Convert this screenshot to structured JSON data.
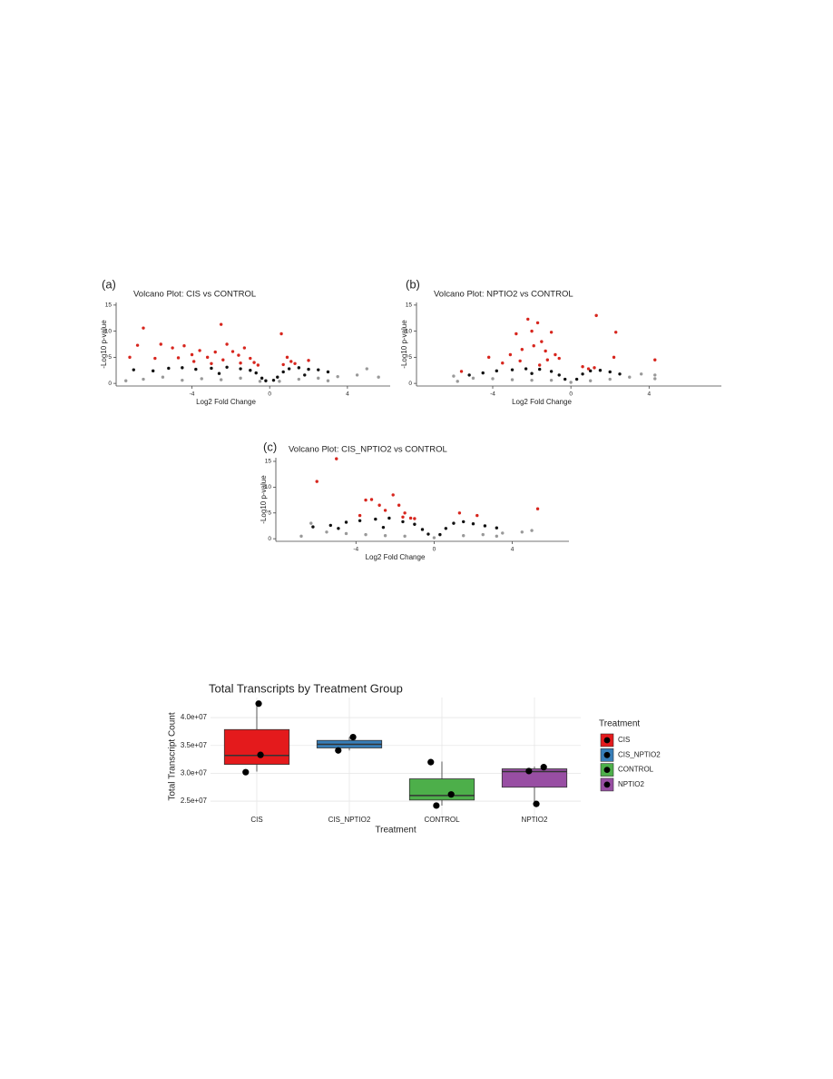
{
  "chart_data": [
    {
      "type": "scatter",
      "panel_label": "(a)",
      "title": "Volcano Plot: CIS vs CONTROL",
      "x_label": "Log2 Fold Change",
      "y_label": "-Log10 p-value",
      "xlim": [
        -7.9,
        6.2
      ],
      "ylim": [
        -0.5,
        15.5
      ],
      "xticks": [
        -4,
        0,
        4
      ],
      "yticks": [
        0,
        5,
        10,
        15
      ],
      "series": [
        {
          "color": "#999999",
          "x": [
            -6.5,
            -5.5,
            -4.5,
            -3.5,
            -2.5,
            -1.5,
            -0.5,
            0.5,
            1.5,
            2.5,
            3.5,
            4.5,
            5.0,
            5.6,
            3.0,
            -7.4
          ],
          "y": [
            0.8,
            1.2,
            0.6,
            0.9,
            0.7,
            1.0,
            0.4,
            0.4,
            0.8,
            1.0,
            1.3,
            1.6,
            2.8,
            1.2,
            0.5,
            0.5
          ]
        },
        {
          "color": "#111111",
          "x": [
            -7.0,
            -6.0,
            -5.2,
            -4.5,
            -3.8,
            -3.0,
            -2.2,
            -1.5,
            -1.0,
            -0.7,
            -0.4,
            -0.2,
            0.2,
            0.4,
            0.7,
            1.0,
            1.5,
            2.0,
            2.5,
            3.0,
            1.8,
            -2.6
          ],
          "y": [
            2.6,
            2.4,
            2.9,
            3.0,
            2.7,
            2.9,
            3.1,
            2.8,
            2.5,
            2.0,
            1.0,
            0.5,
            0.6,
            1.2,
            2.2,
            2.8,
            3.0,
            2.7,
            2.6,
            2.2,
            1.6,
            1.9
          ]
        },
        {
          "color": "#d7261e",
          "x": [
            -6.5,
            -5.6,
            -6.8,
            -7.2,
            -5.9,
            -5.0,
            -4.4,
            -4.0,
            -3.6,
            -3.2,
            -2.8,
            -2.5,
            -2.2,
            -1.9,
            -1.6,
            -1.3,
            -1.0,
            -0.8,
            -3.9,
            -2.4,
            -1.5,
            -4.7,
            -3.0,
            0.9,
            1.1,
            0.6,
            1.3,
            0.7,
            2.0,
            -0.6
          ],
          "y": [
            10.6,
            7.5,
            7.3,
            5.0,
            4.8,
            6.8,
            7.2,
            5.5,
            6.3,
            5.0,
            6.0,
            11.3,
            7.5,
            6.1,
            5.4,
            6.8,
            4.8,
            4.0,
            4.2,
            4.5,
            3.9,
            4.9,
            3.8,
            5.0,
            4.2,
            9.5,
            3.8,
            3.6,
            4.4,
            3.5
          ]
        }
      ]
    },
    {
      "type": "scatter",
      "panel_label": "(b)",
      "title": "Volcano Plot: NPTIO2 vs CONTROL",
      "x_label": "Log2 Fold Change",
      "y_label": "-Log10 p-value",
      "xlim": [
        -7.9,
        7.7
      ],
      "ylim": [
        -0.5,
        15.5
      ],
      "xticks": [
        -4,
        0,
        4
      ],
      "yticks": [
        0,
        5,
        10,
        15
      ],
      "series": [
        {
          "color": "#999999",
          "x": [
            -6.0,
            -5.0,
            -4.0,
            -3.0,
            -2.0,
            -1.0,
            0.0,
            1.0,
            2.0,
            3.0,
            3.6,
            4.3,
            4.3,
            -5.8
          ],
          "y": [
            1.4,
            1.0,
            0.9,
            0.7,
            0.6,
            0.6,
            0.2,
            0.5,
            0.8,
            1.2,
            1.8,
            1.6,
            0.9,
            0.4
          ]
        },
        {
          "color": "#111111",
          "x": [
            -5.2,
            -4.5,
            -3.8,
            -3.0,
            -2.3,
            -1.6,
            -1.0,
            -0.6,
            -0.3,
            0.3,
            0.6,
            1.0,
            1.5,
            2.0,
            2.5,
            -2.0
          ],
          "y": [
            1.6,
            2.0,
            2.4,
            2.6,
            2.8,
            2.7,
            2.3,
            1.6,
            0.8,
            0.8,
            1.8,
            2.4,
            2.5,
            2.2,
            1.8,
            1.9
          ]
        },
        {
          "color": "#d7261e",
          "x": [
            -5.6,
            -4.2,
            -3.1,
            -2.8,
            -2.5,
            -2.2,
            -2.0,
            -1.9,
            -1.7,
            -1.5,
            -1.3,
            -1.2,
            -1.0,
            -0.8,
            -0.6,
            -2.6,
            -3.5,
            0.6,
            0.9,
            1.2,
            1.3,
            2.3,
            2.2,
            4.3,
            -1.6
          ],
          "y": [
            2.3,
            5.0,
            5.5,
            9.5,
            6.5,
            12.3,
            10.0,
            7.2,
            11.6,
            8.0,
            6.2,
            4.5,
            9.8,
            5.5,
            4.8,
            4.3,
            3.9,
            3.2,
            2.8,
            3.0,
            13.0,
            9.8,
            5.0,
            4.5,
            3.5
          ]
        }
      ]
    },
    {
      "type": "scatter",
      "panel_label": "(c)",
      "title": "Volcano Plot: CIS_NPTIO2 vs CONTROL",
      "x_label": "Log2 Fold Change",
      "y_label": "-Log10 p-value",
      "xlim": [
        -8.1,
        6.9
      ],
      "ylim": [
        -0.5,
        15.7
      ],
      "xticks": [
        -4,
        0,
        4
      ],
      "yticks": [
        0,
        5,
        10,
        15
      ],
      "series": [
        {
          "color": "#999999",
          "x": [
            -6.3,
            -5.5,
            -4.5,
            -3.5,
            -2.5,
            -1.5,
            0.0,
            1.5,
            2.5,
            3.5,
            4.5,
            5.0,
            3.2,
            -6.8
          ],
          "y": [
            3.0,
            1.3,
            1.0,
            0.8,
            0.6,
            0.5,
            0.2,
            0.6,
            0.8,
            1.1,
            1.3,
            1.6,
            0.5,
            0.5
          ]
        },
        {
          "color": "#111111",
          "x": [
            -6.2,
            -5.3,
            -4.5,
            -3.8,
            -3.0,
            -2.3,
            -1.6,
            -1.0,
            -0.6,
            -0.3,
            0.3,
            0.6,
            1.0,
            1.5,
            2.0,
            2.6,
            3.2,
            -4.9,
            -2.6
          ],
          "y": [
            2.3,
            2.6,
            3.2,
            3.5,
            3.8,
            4.0,
            3.3,
            2.8,
            1.8,
            0.9,
            0.8,
            2.0,
            3.0,
            3.3,
            2.9,
            2.5,
            2.1,
            2.0,
            2.2
          ]
        },
        {
          "color": "#d7261e",
          "x": [
            -6.0,
            -5.0,
            -3.5,
            -3.2,
            -2.1,
            -1.8,
            -1.5,
            -2.5,
            -1.2,
            -3.8,
            -1.0,
            -1.6,
            1.3,
            2.2,
            5.3,
            -2.8
          ],
          "y": [
            11.1,
            15.5,
            7.5,
            7.6,
            8.5,
            6.5,
            5.0,
            5.5,
            4.0,
            4.5,
            3.9,
            4.2,
            5.0,
            4.5,
            5.8,
            6.5
          ]
        }
      ]
    },
    {
      "type": "box",
      "title": "Total Transcripts by Treatment Group",
      "x_label": "Treatment",
      "y_label": "Total Transcript Count",
      "legend_title": "Treatment",
      "categories": [
        "CIS",
        "CIS_NPTIO2",
        "CONTROL",
        "NPTIO2"
      ],
      "ylim": [
        22400000,
        43600000
      ],
      "yticks": [
        {
          "value": 25000000,
          "label": "2.5e+07"
        },
        {
          "value": 30000000,
          "label": "3.0e+07"
        },
        {
          "value": 35000000,
          "label": "3.5e+07"
        },
        {
          "value": 40000000,
          "label": "4.0e+07"
        }
      ],
      "grid": true,
      "series": [
        {
          "name": "CIS",
          "color": "#e41a1c",
          "whisker_low": 30300000,
          "q1": 31600000,
          "median": 33200000,
          "q3": 37850000,
          "whisker_high": 42500000,
          "points": [
            42500000,
            33300000,
            30200000
          ]
        },
        {
          "name": "CIS_NPTIO2",
          "color": "#377eb8",
          "whisker_low": 34100000,
          "q1": 34550000,
          "median": 35200000,
          "q3": 35900000,
          "whisker_high": 36500000,
          "points": [
            36500000,
            34100000
          ]
        },
        {
          "name": "CONTROL",
          "color": "#4daf4a",
          "whisker_low": 24200000,
          "q1": 25200000,
          "median": 26000000,
          "q3": 29000000,
          "whisker_high": 32100000,
          "points": [
            32000000,
            26200000,
            24200000
          ]
        },
        {
          "name": "NPTIO2",
          "color": "#984ea3",
          "whisker_low": 24500000,
          "q1": 27500000,
          "median": 30300000,
          "q3": 30800000,
          "whisker_high": 31200000,
          "points": [
            31100000,
            30400000,
            24500000
          ]
        }
      ]
    }
  ]
}
